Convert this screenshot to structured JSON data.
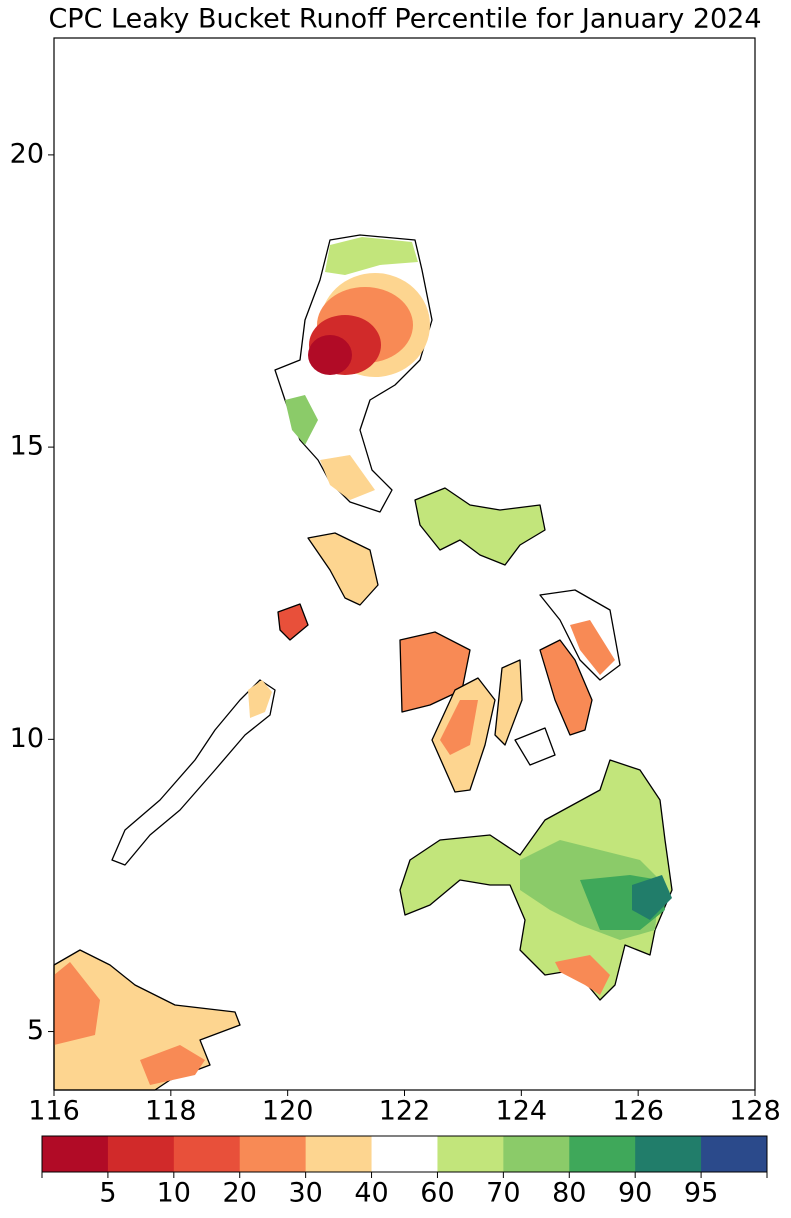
{
  "chart_data": {
    "type": "map",
    "title": "CPC Leaky Bucket Runoff Percentile for January 2024",
    "title_color": "#0000ff",
    "xlim": [
      116,
      128
    ],
    "ylim": [
      4,
      22
    ],
    "xticks": [
      116,
      118,
      120,
      122,
      124,
      126,
      128
    ],
    "yticks": [
      5,
      10,
      15,
      20
    ],
    "colorbar": {
      "bounds": [
        5,
        10,
        20,
        30,
        40,
        60,
        70,
        80,
        90,
        95
      ],
      "colors": [
        "#b10b26",
        "#d12a2a",
        "#e8503a",
        "#f88a55",
        "#fdd590",
        "#ffffff",
        "#c2e57b",
        "#8bcb69",
        "#3fa85a",
        "#217d6a",
        "#2b4a8b"
      ]
    }
  }
}
